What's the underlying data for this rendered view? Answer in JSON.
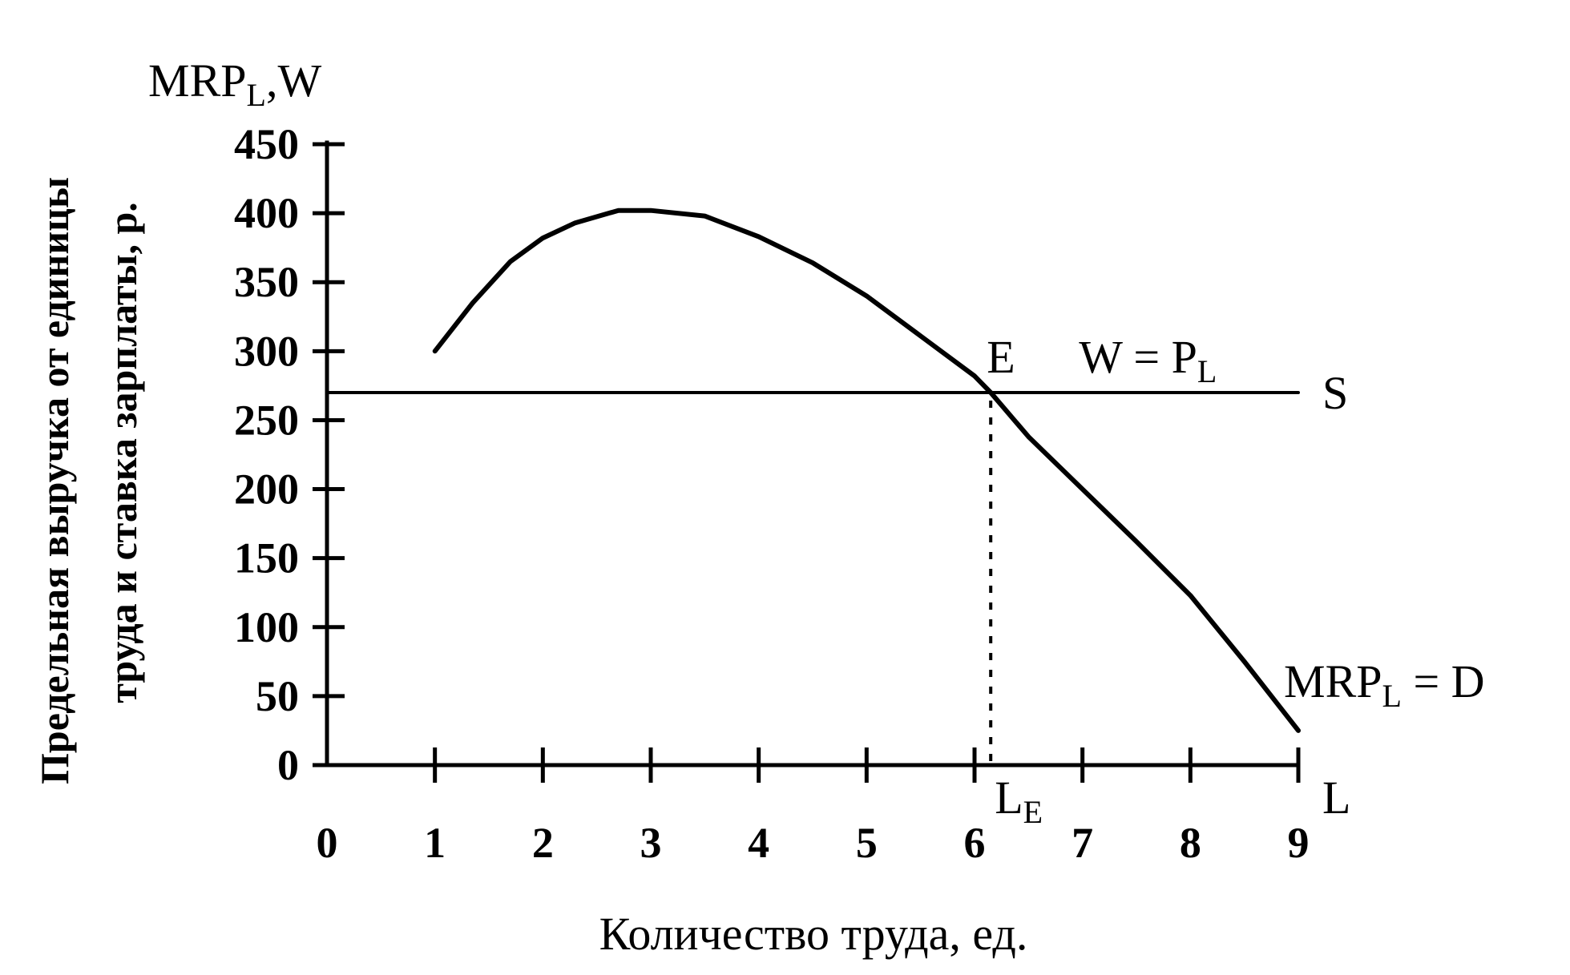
{
  "chart_data": {
    "type": "line",
    "y_axis_symbol": {
      "main": "MRP",
      "sub": "L",
      "suffix": ",W"
    },
    "ylabel_line1": "Предельная выручка от единицы",
    "ylabel_line2": "труда и ставка зарплаты, р.",
    "xlabel": "Количество труда, ед.",
    "x_axis_symbol": "L",
    "xlim": [
      0,
      9
    ],
    "ylim": [
      0,
      450
    ],
    "x_ticks": [
      0,
      1,
      2,
      3,
      4,
      5,
      6,
      7,
      8,
      9
    ],
    "y_ticks": [
      0,
      50,
      100,
      150,
      200,
      250,
      300,
      350,
      400,
      450
    ],
    "grid": false,
    "series": [
      {
        "name": "MRP_L = D",
        "label_main": "MRP",
        "label_sub": "L",
        "label_suffix": " = D",
        "x": [
          1,
          1.35,
          1.7,
          2.0,
          2.3,
          2.7,
          3.0,
          3.5,
          4.0,
          4.5,
          5.0,
          5.5,
          6.0,
          6.15,
          6.5,
          7.0,
          7.5,
          8.0,
          8.5,
          9.0
        ],
        "y": [
          300,
          335,
          365,
          382,
          393,
          402,
          402,
          398,
          383,
          364,
          340,
          311,
          282,
          270,
          238,
          200,
          162,
          123,
          75,
          25
        ]
      },
      {
        "name": "S",
        "label_text": "S",
        "x": [
          0,
          9.0
        ],
        "y": [
          270,
          270
        ]
      }
    ],
    "equilibrium": {
      "x": 6.15,
      "y": 270,
      "point_label": "E",
      "wage_label_main": "W = P",
      "wage_label_sub": "L",
      "le_label_main": "L",
      "le_label_sub": "E"
    }
  }
}
